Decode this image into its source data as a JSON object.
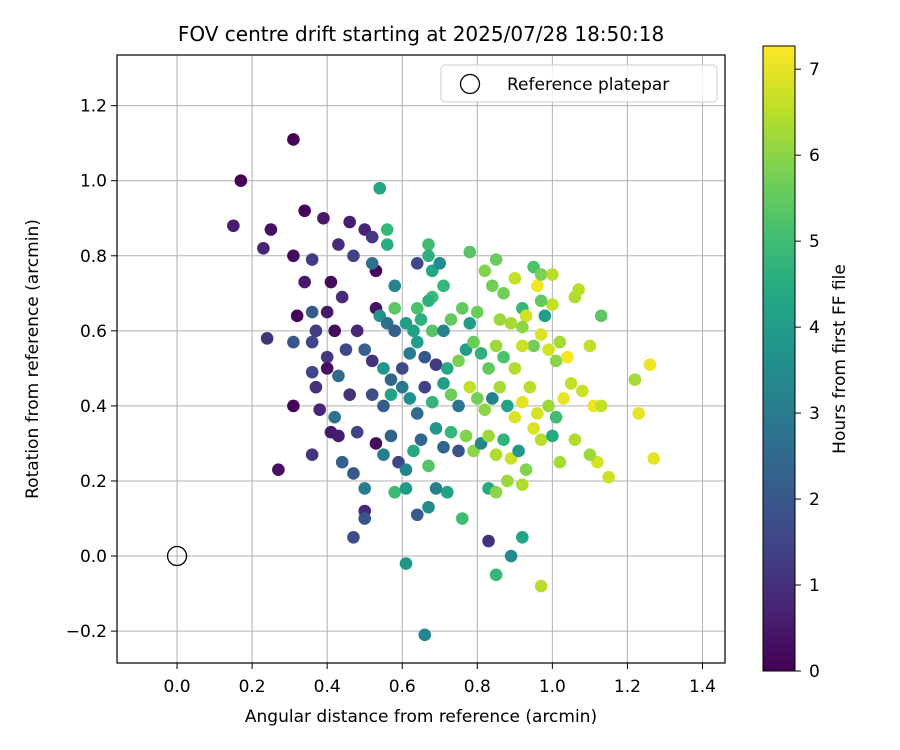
{
  "chart_data": {
    "type": "scatter",
    "title": "FOV centre drift starting at 2025/07/28 18:50:18",
    "xlabel": "Angular distance from reference (arcmin)",
    "ylabel": "Rotation from reference (arcmin)",
    "xlim": [
      -0.16,
      1.46
    ],
    "ylim": [
      -0.285,
      1.335
    ],
    "xticks": [
      0.0,
      0.2,
      0.4,
      0.6,
      0.8,
      1.0,
      1.2,
      1.4
    ],
    "xtick_labels": [
      "0.0",
      "0.2",
      "0.4",
      "0.6",
      "0.8",
      "1.0",
      "1.2",
      "1.4"
    ],
    "yticks": [
      -0.2,
      0.0,
      0.2,
      0.4,
      0.6,
      0.8,
      1.0,
      1.2
    ],
    "ytick_labels": [
      "−0.2",
      "0.0",
      "0.2",
      "0.4",
      "0.6",
      "0.8",
      "1.0",
      "1.2"
    ],
    "grid": true,
    "legend": {
      "position": "top-right",
      "entries": [
        "Reference platepar"
      ]
    },
    "reference_point": {
      "name": "Reference platepar",
      "x": 0.0,
      "y": 0.0
    },
    "colorbar": {
      "label": "Hours from first FF file",
      "range": [
        0,
        7.27
      ],
      "ticks": [
        0,
        1,
        2,
        3,
        4,
        5,
        6,
        7
      ],
      "tick_labels": [
        "0",
        "1",
        "2",
        "3",
        "4",
        "5",
        "6",
        "7"
      ],
      "colormap": "viridis"
    },
    "points": [
      [
        0.31,
        1.11,
        0.05
      ],
      [
        0.17,
        1.0,
        0.0
      ],
      [
        0.15,
        0.88,
        0.6
      ],
      [
        0.25,
        0.87,
        0.3
      ],
      [
        0.34,
        0.92,
        0.1
      ],
      [
        0.23,
        0.82,
        0.7
      ],
      [
        0.31,
        0.8,
        0.2
      ],
      [
        0.39,
        0.9,
        0.5
      ],
      [
        0.46,
        0.89,
        0.6
      ],
      [
        0.43,
        0.83,
        0.9
      ],
      [
        0.5,
        0.87,
        0.7
      ],
      [
        0.52,
        0.85,
        1.2
      ],
      [
        0.53,
        0.76,
        0.1
      ],
      [
        0.36,
        0.79,
        1.3
      ],
      [
        0.34,
        0.73,
        0.5
      ],
      [
        0.41,
        0.73,
        0.2
      ],
      [
        0.47,
        0.8,
        1.4
      ],
      [
        0.32,
        0.64,
        0.1
      ],
      [
        0.24,
        0.58,
        1.1
      ],
      [
        0.31,
        0.57,
        2.0
      ],
      [
        0.36,
        0.65,
        2.1
      ],
      [
        0.4,
        0.65,
        0.5
      ],
      [
        0.44,
        0.69,
        0.9
      ],
      [
        0.37,
        0.6,
        1.3
      ],
      [
        0.36,
        0.57,
        1.5
      ],
      [
        0.42,
        0.6,
        0.2
      ],
      [
        0.4,
        0.53,
        1.2
      ],
      [
        0.45,
        0.55,
        1.6
      ],
      [
        0.48,
        0.6,
        0.8
      ],
      [
        0.36,
        0.49,
        1.5
      ],
      [
        0.37,
        0.45,
        1.0
      ],
      [
        0.4,
        0.5,
        0.3
      ],
      [
        0.43,
        0.48,
        2.5
      ],
      [
        0.46,
        0.43,
        1.0
      ],
      [
        0.31,
        0.4,
        0.1
      ],
      [
        0.38,
        0.39,
        0.8
      ],
      [
        0.42,
        0.37,
        2.8
      ],
      [
        0.41,
        0.33,
        0.5
      ],
      [
        0.43,
        0.32,
        0.6
      ],
      [
        0.48,
        0.33,
        1.4
      ],
      [
        0.36,
        0.27,
        1.1
      ],
      [
        0.27,
        0.23,
        0.3
      ],
      [
        0.44,
        0.25,
        2.2
      ],
      [
        0.47,
        0.22,
        2.0
      ],
      [
        0.5,
        0.18,
        3.0
      ],
      [
        0.5,
        0.12,
        0.8
      ],
      [
        0.5,
        0.1,
        1.9
      ],
      [
        0.47,
        0.05,
        1.7
      ],
      [
        0.54,
        0.98,
        4.3
      ],
      [
        0.56,
        0.87,
        4.8
      ],
      [
        0.56,
        0.83,
        4.5
      ],
      [
        0.52,
        0.78,
        2.7
      ],
      [
        0.58,
        0.72,
        3.3
      ],
      [
        0.64,
        0.78,
        1.5
      ],
      [
        0.67,
        0.83,
        5.0
      ],
      [
        0.67,
        0.8,
        4.6
      ],
      [
        0.68,
        0.76,
        4.3
      ],
      [
        0.7,
        0.78,
        3.5
      ],
      [
        0.71,
        0.72,
        4.8
      ],
      [
        0.68,
        0.69,
        5.0
      ],
      [
        0.67,
        0.68,
        4.6
      ],
      [
        0.64,
        0.66,
        5.2
      ],
      [
        0.58,
        0.66,
        5.4
      ],
      [
        0.53,
        0.66,
        0.4
      ],
      [
        0.54,
        0.64,
        3.7
      ],
      [
        0.56,
        0.62,
        2.7
      ],
      [
        0.58,
        0.6,
        2.2
      ],
      [
        0.61,
        0.62,
        4.0
      ],
      [
        0.63,
        0.6,
        4.1
      ],
      [
        0.65,
        0.63,
        4.6
      ],
      [
        0.68,
        0.6,
        5.3
      ],
      [
        0.71,
        0.6,
        3.2
      ],
      [
        0.73,
        0.63,
        5.5
      ],
      [
        0.76,
        0.66,
        5.5
      ],
      [
        0.78,
        0.62,
        4.0
      ],
      [
        0.8,
        0.65,
        5.6
      ],
      [
        0.78,
        0.81,
        5.3
      ],
      [
        0.82,
        0.76,
        5.9
      ],
      [
        0.84,
        0.72,
        5.7
      ],
      [
        0.85,
        0.79,
        5.6
      ],
      [
        0.87,
        0.7,
        5.7
      ],
      [
        0.86,
        0.63,
        6.2
      ],
      [
        0.89,
        0.62,
        6.3
      ],
      [
        0.9,
        0.74,
        6.6
      ],
      [
        0.92,
        0.66,
        4.8
      ],
      [
        0.95,
        0.77,
        5.2
      ],
      [
        0.96,
        0.72,
        7.1
      ],
      [
        0.97,
        0.75,
        5.8
      ],
      [
        1.0,
        0.75,
        6.5
      ],
      [
        1.0,
        0.67,
        6.6
      ],
      [
        0.98,
        0.64,
        4.0
      ],
      [
        0.97,
        0.68,
        5.5
      ],
      [
        0.93,
        0.64,
        6.8
      ],
      [
        0.92,
        0.61,
        6.0
      ],
      [
        0.95,
        0.56,
        5.7
      ],
      [
        0.97,
        0.59,
        6.9
      ],
      [
        0.99,
        0.55,
        6.8
      ],
      [
        1.01,
        0.52,
        6.0
      ],
      [
        1.02,
        0.57,
        6.3
      ],
      [
        1.04,
        0.53,
        7.2
      ],
      [
        1.06,
        0.69,
        6.4
      ],
      [
        1.07,
        0.71,
        6.5
      ],
      [
        1.1,
        0.56,
        6.6
      ],
      [
        1.13,
        0.64,
        5.4
      ],
      [
        0.5,
        0.55,
        2.2
      ],
      [
        0.52,
        0.52,
        1.1
      ],
      [
        0.55,
        0.5,
        3.8
      ],
      [
        0.57,
        0.47,
        2.4
      ],
      [
        0.6,
        0.5,
        1.6
      ],
      [
        0.62,
        0.54,
        3.0
      ],
      [
        0.64,
        0.57,
        4.0
      ],
      [
        0.66,
        0.53,
        2.0
      ],
      [
        0.69,
        0.51,
        1.2
      ],
      [
        0.72,
        0.5,
        4.4
      ],
      [
        0.75,
        0.52,
        5.8
      ],
      [
        0.77,
        0.55,
        4.1
      ],
      [
        0.79,
        0.57,
        5.6
      ],
      [
        0.81,
        0.54,
        4.6
      ],
      [
        0.83,
        0.5,
        5.5
      ],
      [
        0.85,
        0.56,
        6.2
      ],
      [
        0.87,
        0.53,
        5.2
      ],
      [
        0.9,
        0.5,
        6.4
      ],
      [
        0.92,
        0.56,
        6.7
      ],
      [
        0.52,
        0.43,
        1.7
      ],
      [
        0.55,
        0.4,
        2.1
      ],
      [
        0.57,
        0.43,
        4.2
      ],
      [
        0.6,
        0.45,
        2.9
      ],
      [
        0.62,
        0.42,
        3.6
      ],
      [
        0.64,
        0.38,
        2.5
      ],
      [
        0.66,
        0.45,
        1.4
      ],
      [
        0.68,
        0.41,
        4.7
      ],
      [
        0.71,
        0.46,
        4.0
      ],
      [
        0.73,
        0.43,
        5.6
      ],
      [
        0.75,
        0.4,
        2.8
      ],
      [
        0.78,
        0.45,
        6.6
      ],
      [
        0.8,
        0.42,
        5.7
      ],
      [
        0.82,
        0.39,
        6.0
      ],
      [
        0.84,
        0.42,
        3.1
      ],
      [
        0.86,
        0.45,
        6.3
      ],
      [
        0.88,
        0.4,
        4.2
      ],
      [
        0.9,
        0.37,
        6.9
      ],
      [
        0.92,
        0.41,
        7.0
      ],
      [
        0.94,
        0.45,
        6.5
      ],
      [
        0.96,
        0.38,
        6.8
      ],
      [
        0.99,
        0.4,
        6.2
      ],
      [
        1.01,
        0.37,
        5.0
      ],
      [
        1.03,
        0.42,
        7.0
      ],
      [
        1.05,
        0.46,
        6.6
      ],
      [
        1.08,
        0.44,
        6.7
      ],
      [
        1.11,
        0.4,
        7.1
      ],
      [
        1.13,
        0.4,
        6.6
      ],
      [
        1.12,
        0.25,
        6.8
      ],
      [
        1.15,
        0.21,
        6.7
      ],
      [
        1.22,
        0.47,
        6.3
      ],
      [
        1.23,
        0.38,
        7.0
      ],
      [
        1.26,
        0.51,
        7.1
      ],
      [
        1.27,
        0.26,
        7.0
      ],
      [
        0.53,
        0.3,
        0.2
      ],
      [
        0.55,
        0.27,
        3.0
      ],
      [
        0.57,
        0.32,
        2.3
      ],
      [
        0.59,
        0.25,
        1.5
      ],
      [
        0.61,
        0.23,
        3.3
      ],
      [
        0.63,
        0.28,
        4.4
      ],
      [
        0.65,
        0.31,
        2.4
      ],
      [
        0.67,
        0.24,
        5.3
      ],
      [
        0.69,
        0.34,
        3.8
      ],
      [
        0.71,
        0.29,
        2.4
      ],
      [
        0.73,
        0.33,
        4.8
      ],
      [
        0.75,
        0.28,
        1.8
      ],
      [
        0.77,
        0.32,
        5.9
      ],
      [
        0.79,
        0.28,
        6.0
      ],
      [
        0.81,
        0.3,
        3.3
      ],
      [
        0.83,
        0.32,
        6.2
      ],
      [
        0.85,
        0.27,
        6.4
      ],
      [
        0.87,
        0.31,
        4.7
      ],
      [
        0.89,
        0.26,
        6.7
      ],
      [
        0.91,
        0.28,
        3.8
      ],
      [
        0.93,
        0.23,
        5.9
      ],
      [
        0.95,
        0.34,
        6.9
      ],
      [
        0.97,
        0.31,
        6.5
      ],
      [
        1.0,
        0.32,
        4.4
      ],
      [
        1.02,
        0.25,
        6.3
      ],
      [
        1.06,
        0.31,
        6.4
      ],
      [
        1.1,
        0.27,
        6.2
      ],
      [
        0.58,
        0.17,
        4.9
      ],
      [
        0.61,
        0.18,
        3.9
      ],
      [
        0.64,
        0.11,
        2.1
      ],
      [
        0.67,
        0.13,
        3.5
      ],
      [
        0.69,
        0.18,
        3.1
      ],
      [
        0.72,
        0.17,
        4.2
      ],
      [
        0.76,
        0.1,
        5.0
      ],
      [
        0.83,
        0.18,
        4.4
      ],
      [
        0.85,
        0.17,
        6.0
      ],
      [
        0.88,
        0.2,
        6.2
      ],
      [
        0.92,
        0.19,
        6.4
      ],
      [
        0.61,
        -0.02,
        3.8
      ],
      [
        0.66,
        -0.21,
        3.3
      ],
      [
        0.83,
        0.04,
        1.0
      ],
      [
        0.85,
        -0.05,
        4.8
      ],
      [
        0.89,
        0.0,
        3.5
      ],
      [
        0.92,
        0.05,
        4.3
      ],
      [
        0.97,
        -0.08,
        6.5
      ]
    ]
  }
}
